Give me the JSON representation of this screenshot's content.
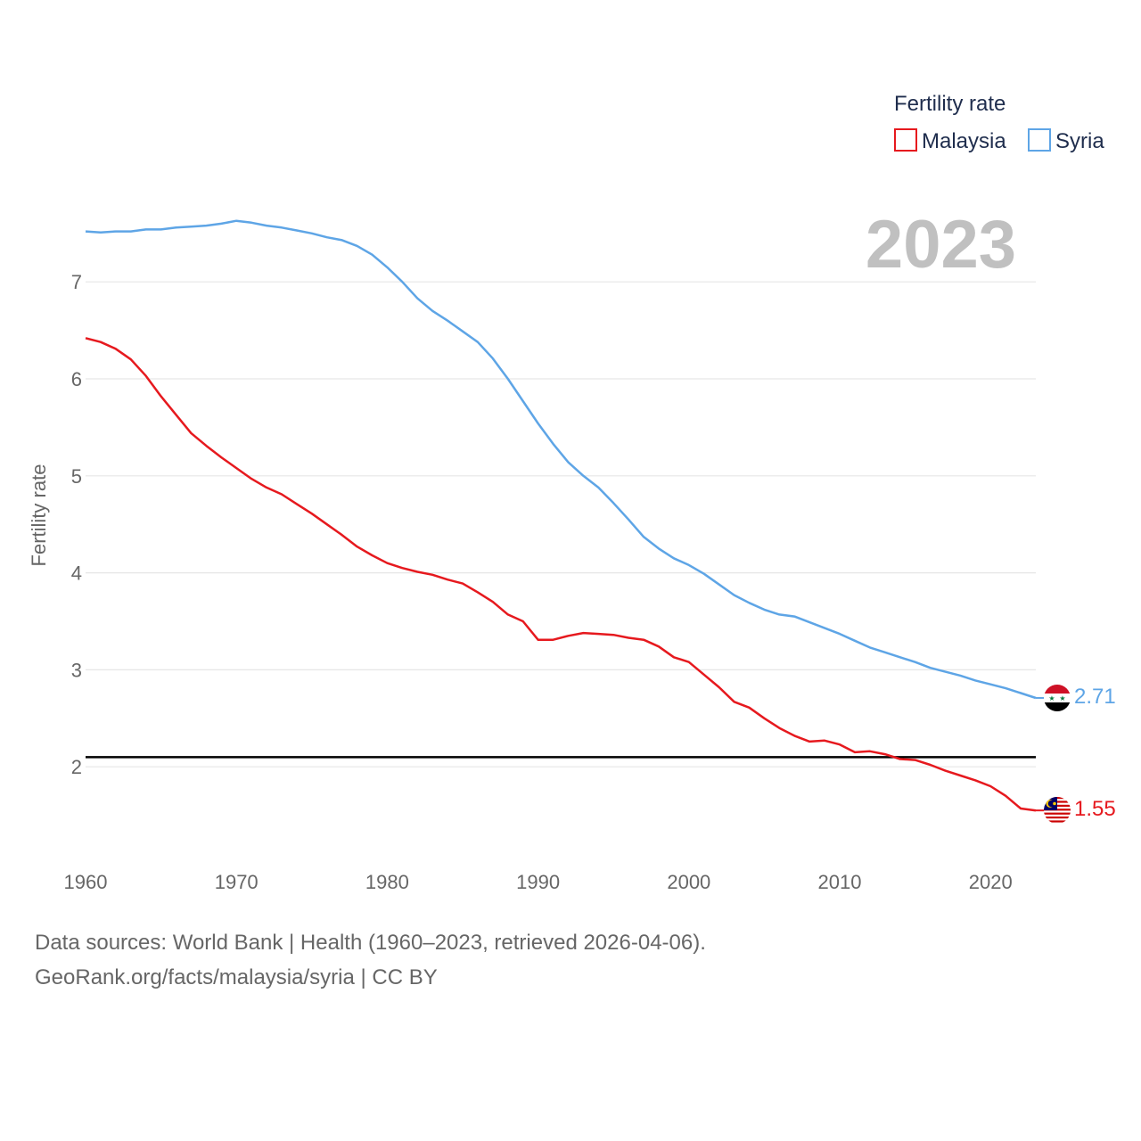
{
  "chart_data": {
    "type": "line",
    "legend_title": "Fertility rate",
    "ylabel": "Fertility rate",
    "year_label": "2023",
    "xlim": [
      1960,
      2023
    ],
    "ylim": [
      1.0,
      8.0
    ],
    "x_ticks": [
      1960,
      1970,
      1980,
      1990,
      2000,
      2010,
      2020
    ],
    "y_ticks": [
      2,
      3,
      4,
      5,
      6,
      7
    ],
    "reference_line": 2.1,
    "reference_color": "#000000",
    "grid_color": "#e6e6e6",
    "series": [
      {
        "name": "Malaysia",
        "color": "#e6191e",
        "end_label": "1.55",
        "flag": "malaysia-flag-icon",
        "x": [
          1960,
          1961,
          1962,
          1963,
          1964,
          1965,
          1966,
          1967,
          1968,
          1969,
          1970,
          1971,
          1972,
          1973,
          1974,
          1975,
          1976,
          1977,
          1978,
          1979,
          1980,
          1981,
          1982,
          1983,
          1984,
          1985,
          1986,
          1987,
          1988,
          1989,
          1990,
          1991,
          1992,
          1993,
          1994,
          1995,
          1996,
          1997,
          1998,
          1999,
          2000,
          2001,
          2002,
          2003,
          2004,
          2005,
          2006,
          2007,
          2008,
          2009,
          2010,
          2011,
          2012,
          2013,
          2014,
          2015,
          2016,
          2017,
          2018,
          2019,
          2020,
          2021,
          2022,
          2023
        ],
        "values": [
          6.42,
          6.38,
          6.31,
          6.2,
          6.03,
          5.82,
          5.63,
          5.44,
          5.31,
          5.19,
          5.08,
          4.97,
          4.88,
          4.81,
          4.71,
          4.61,
          4.5,
          4.39,
          4.27,
          4.18,
          4.1,
          4.05,
          4.01,
          3.98,
          3.93,
          3.89,
          3.8,
          3.7,
          3.57,
          3.5,
          3.31,
          3.31,
          3.35,
          3.38,
          3.37,
          3.36,
          3.33,
          3.31,
          3.24,
          3.13,
          3.08,
          2.95,
          2.82,
          2.67,
          2.61,
          2.5,
          2.4,
          2.32,
          2.26,
          2.27,
          2.23,
          2.15,
          2.16,
          2.13,
          2.08,
          2.07,
          2.02,
          1.96,
          1.91,
          1.86,
          1.8,
          1.7,
          1.57,
          1.55
        ]
      },
      {
        "name": "Syria",
        "color": "#5ea5e6",
        "end_label": "2.71",
        "flag": "syria-flag-icon",
        "x": [
          1960,
          1961,
          1962,
          1963,
          1964,
          1965,
          1966,
          1967,
          1968,
          1969,
          1970,
          1971,
          1972,
          1973,
          1974,
          1975,
          1976,
          1977,
          1978,
          1979,
          1980,
          1981,
          1982,
          1983,
          1984,
          1985,
          1986,
          1987,
          1988,
          1989,
          1990,
          1991,
          1992,
          1993,
          1994,
          1995,
          1996,
          1997,
          1998,
          1999,
          2000,
          2001,
          2002,
          2003,
          2004,
          2005,
          2006,
          2007,
          2008,
          2009,
          2010,
          2011,
          2012,
          2013,
          2014,
          2015,
          2016,
          2017,
          2018,
          2019,
          2020,
          2021,
          2022,
          2023
        ],
        "values": [
          7.52,
          7.51,
          7.52,
          7.52,
          7.54,
          7.54,
          7.56,
          7.57,
          7.58,
          7.6,
          7.63,
          7.61,
          7.58,
          7.56,
          7.53,
          7.5,
          7.46,
          7.43,
          7.37,
          7.28,
          7.15,
          7.0,
          6.83,
          6.7,
          6.6,
          6.49,
          6.38,
          6.21,
          6.0,
          5.77,
          5.54,
          5.33,
          5.14,
          5.0,
          4.88,
          4.72,
          4.55,
          4.37,
          4.25,
          4.15,
          4.08,
          3.99,
          3.88,
          3.77,
          3.69,
          3.62,
          3.57,
          3.55,
          3.49,
          3.43,
          3.37,
          3.3,
          3.23,
          3.18,
          3.13,
          3.08,
          3.02,
          2.98,
          2.94,
          2.89,
          2.85,
          2.81,
          2.76,
          2.71
        ]
      }
    ]
  },
  "footer": {
    "sources": "Data sources: World Bank | Health (1960–2023, retrieved 2026-04-06).",
    "credit": "GeoRank.org/facts/malaysia/syria | CC BY"
  }
}
